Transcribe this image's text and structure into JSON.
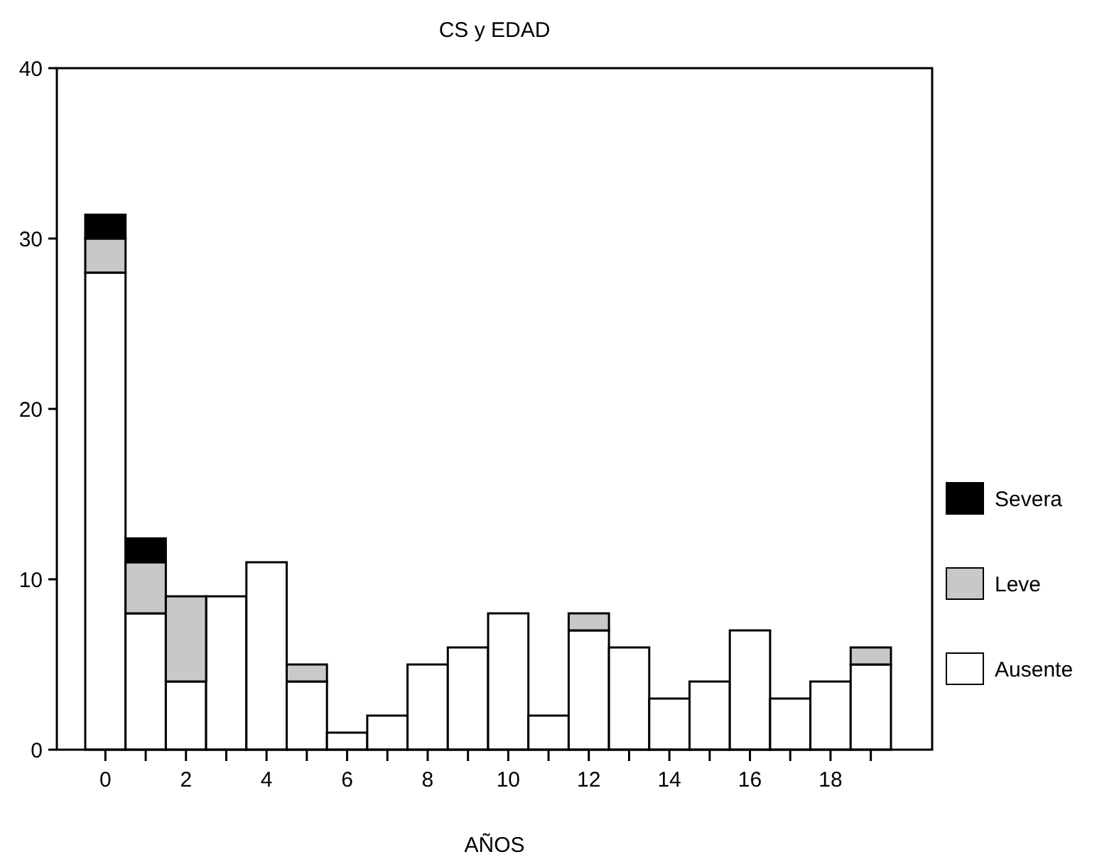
{
  "chart_data": {
    "type": "bar",
    "title": "CS y EDAD",
    "xlabel": "AÑOS",
    "stacked": true,
    "legend": "right",
    "categories": [
      "0",
      null,
      "2",
      null,
      "4",
      null,
      "6",
      null,
      "8",
      null,
      "10",
      null,
      "12",
      null,
      "14",
      null,
      "16",
      null,
      "18",
      null
    ],
    "series": [
      {
        "name": "Ausente",
        "color": "#ffffff",
        "values": [
          28,
          8,
          4,
          9,
          11,
          4,
          1,
          2,
          5,
          6,
          8,
          2,
          7,
          6,
          3,
          4,
          7,
          3,
          4,
          5
        ]
      },
      {
        "name": "Leve",
        "color": "#c8c8c8",
        "values": [
          2,
          3,
          5,
          0,
          0,
          1,
          0,
          0,
          0,
          0,
          0,
          0,
          1,
          0,
          0,
          0,
          0,
          0,
          0,
          1
        ]
      },
      {
        "name": "Severa",
        "color": "#000000",
        "values": [
          1.4,
          1.4,
          0,
          0,
          0,
          0,
          0,
          0,
          0,
          0,
          0,
          0,
          0,
          0,
          0,
          0,
          0,
          0,
          0,
          0
        ]
      }
    ],
    "ylim": [
      0,
      40
    ],
    "yticks": [
      0,
      10,
      20,
      30,
      40
    ]
  }
}
